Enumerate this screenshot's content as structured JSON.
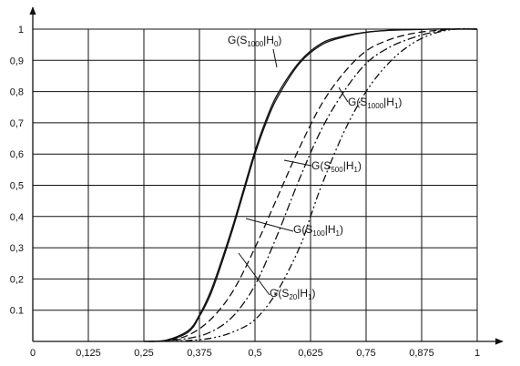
{
  "chart_data": {
    "type": "line",
    "title": "",
    "xlabel": "",
    "ylabel": "",
    "xlim": [
      0,
      1
    ],
    "ylim": [
      0,
      1
    ],
    "grid": true,
    "x_ticks": [
      "0",
      "0,125",
      "0,25",
      "0,375",
      "0,5",
      "0,625",
      "0,75",
      "0,875",
      "1"
    ],
    "y_ticks": [
      "0.1",
      "0,2",
      "0,3",
      "0,4",
      "0,5",
      "0,6",
      "0,7",
      "0,8",
      "0,9",
      "1"
    ],
    "y_tick_values": [
      0.1,
      0.2,
      0.3,
      0.4,
      0.5,
      0.6,
      0.7,
      0.8,
      0.9,
      1.0
    ],
    "series": [
      {
        "style": "solid",
        "x": [
          0.25,
          0.3,
          0.35,
          0.375,
          0.4,
          0.425,
          0.45,
          0.475,
          0.5,
          0.525,
          0.55,
          0.6,
          0.65,
          0.7,
          0.75,
          0.8,
          0.9,
          0.95
        ],
        "y": [
          0.0,
          0.003,
          0.03,
          0.08,
          0.15,
          0.25,
          0.36,
          0.48,
          0.6,
          0.7,
          0.78,
          0.89,
          0.95,
          0.975,
          0.99,
          0.996,
          1.0,
          1.0
        ]
      },
      {
        "style": "solid",
        "x": [
          0.25,
          0.3,
          0.35,
          0.375,
          0.4,
          0.425,
          0.45,
          0.475,
          0.5,
          0.525,
          0.55,
          0.6,
          0.65,
          0.7,
          0.75,
          0.8,
          0.9,
          0.95
        ],
        "y": [
          0.0,
          0.004,
          0.035,
          0.085,
          0.16,
          0.26,
          0.37,
          0.49,
          0.61,
          0.71,
          0.79,
          0.895,
          0.955,
          0.978,
          0.99,
          0.996,
          1.0,
          1.0
        ]
      },
      {
        "style": "dashed",
        "x": [
          0.26,
          0.3,
          0.35,
          0.4,
          0.45,
          0.5,
          0.55,
          0.6,
          0.65,
          0.7,
          0.75,
          0.8,
          0.85,
          0.9,
          0.95
        ],
        "y": [
          0.0,
          0.003,
          0.02,
          0.07,
          0.16,
          0.3,
          0.46,
          0.62,
          0.76,
          0.86,
          0.93,
          0.965,
          0.985,
          0.995,
          1.0
        ]
      },
      {
        "style": "dash-dot",
        "x": [
          0.28,
          0.35,
          0.4,
          0.45,
          0.5,
          0.55,
          0.6,
          0.65,
          0.7,
          0.75,
          0.8,
          0.85,
          0.9,
          0.95
        ],
        "y": [
          0.0,
          0.01,
          0.03,
          0.08,
          0.18,
          0.34,
          0.52,
          0.68,
          0.8,
          0.89,
          0.94,
          0.97,
          0.99,
          1.0
        ]
      },
      {
        "style": "dash-dot-dot",
        "x": [
          0.3,
          0.35,
          0.4,
          0.45,
          0.5,
          0.55,
          0.6,
          0.625,
          0.65,
          0.7,
          0.75,
          0.8,
          0.85,
          0.9,
          0.95
        ],
        "y": [
          0.0,
          0.003,
          0.01,
          0.03,
          0.07,
          0.16,
          0.3,
          0.4,
          0.5,
          0.67,
          0.8,
          0.89,
          0.95,
          0.985,
          1.0
        ]
      }
    ],
    "annotations": [
      {
        "pre": "G(S",
        "sub": "1000",
        "post": "|H",
        "sub2": "0",
        "tail": ")"
      },
      {
        "pre": "G(S",
        "sub": "1000",
        "post": "|H",
        "sub2": "1",
        "tail": ")"
      },
      {
        "pre": "G(S",
        "sub": "500",
        "post": "|H",
        "sub2": "1",
        "tail": ")"
      },
      {
        "pre": "G(S",
        "sub": "100",
        "post": "|H",
        "sub2": "1",
        "tail": ")"
      },
      {
        "pre": "G(S",
        "sub": "20",
        "post": "|H",
        "sub2": "1",
        "tail": ")"
      }
    ]
  }
}
